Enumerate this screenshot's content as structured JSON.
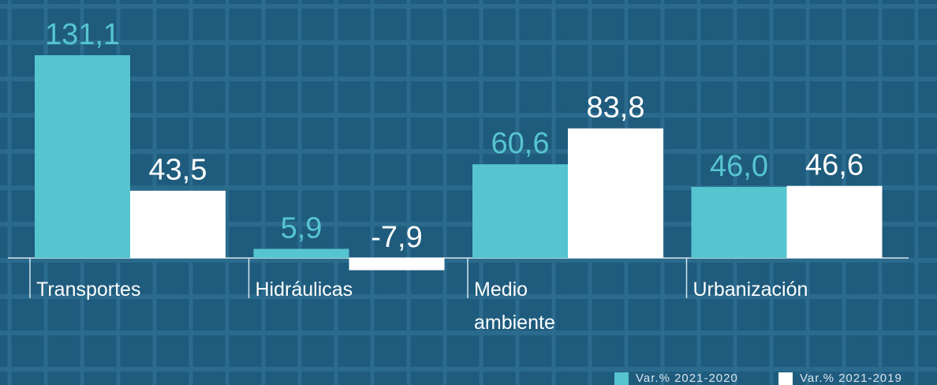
{
  "chart_data": {
    "type": "bar",
    "categories": [
      "Transportes",
      "Hidráulicas",
      "Medio ambiente",
      "Urbanización"
    ],
    "series": [
      {
        "name": "Var.% 2021-2020",
        "color": "#56c5d0",
        "values": [
          131.1,
          5.9,
          60.6,
          46.0
        ],
        "value_labels": [
          "131,1",
          "5,9",
          "60,6",
          "46,0"
        ]
      },
      {
        "name": "Var.% 2021-2019",
        "color": "#ffffff",
        "values": [
          43.5,
          -7.9,
          83.8,
          46.6
        ],
        "value_labels": [
          "43,5",
          "-7,9",
          "83,8",
          "46,6"
        ]
      }
    ]
  }
}
